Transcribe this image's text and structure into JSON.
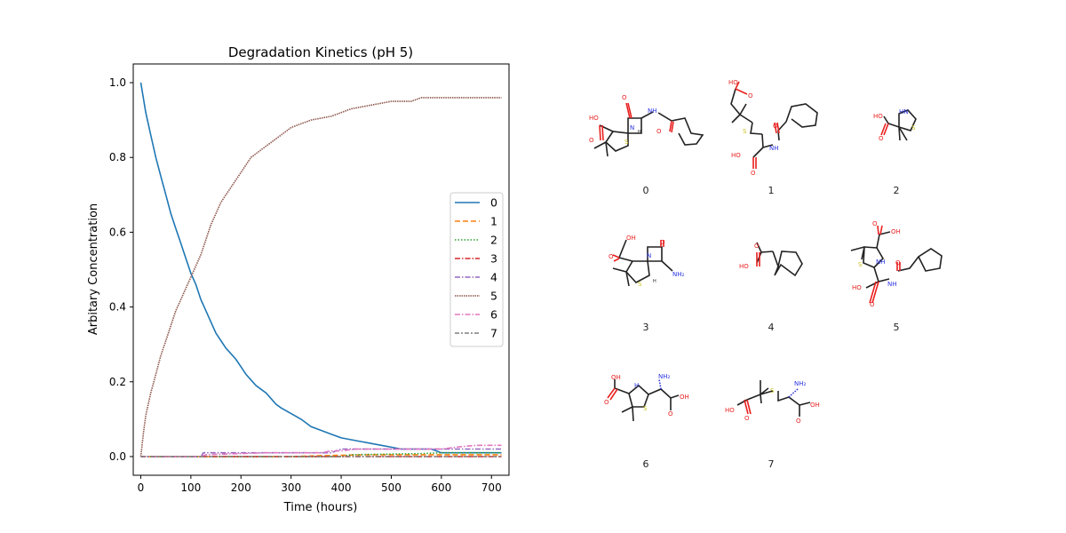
{
  "chart_data": {
    "type": "line",
    "title": "Degradation Kinetics (pH 5)",
    "xlabel": "Time (hours)",
    "ylabel": "Arbitary Concentration",
    "xlim": [
      -15,
      735
    ],
    "ylim": [
      -0.05,
      1.05
    ],
    "xticks": [
      0,
      100,
      200,
      300,
      400,
      500,
      600,
      700
    ],
    "yticks": [
      0.0,
      0.2,
      0.4,
      0.6,
      0.8,
      1.0
    ],
    "xtick_labels": [
      "0",
      "100",
      "200",
      "300",
      "400",
      "500",
      "600",
      "700"
    ],
    "ytick_labels": [
      "0.0",
      "0.2",
      "0.4",
      "0.6",
      "0.8",
      "1.0"
    ],
    "grid": false,
    "legend_position": "right",
    "series": [
      {
        "name": "0",
        "color": "#1f77b4",
        "dash": "solid",
        "x": [
          0,
          5,
          10,
          15,
          20,
          30,
          40,
          50,
          60,
          70,
          80,
          90,
          100,
          110,
          120,
          130,
          140,
          150,
          160,
          170,
          180,
          190,
          200,
          210,
          220,
          230,
          240,
          250,
          260,
          270,
          280,
          300,
          320,
          340,
          360,
          380,
          400,
          420,
          440,
          460,
          480,
          500,
          520,
          540,
          560,
          580,
          600,
          620,
          650,
          680,
          720
        ],
        "y": [
          1.0,
          0.96,
          0.92,
          0.89,
          0.86,
          0.8,
          0.75,
          0.7,
          0.65,
          0.61,
          0.57,
          0.53,
          0.49,
          0.46,
          0.42,
          0.39,
          0.36,
          0.33,
          0.31,
          0.29,
          0.275,
          0.26,
          0.24,
          0.22,
          0.205,
          0.19,
          0.18,
          0.17,
          0.155,
          0.14,
          0.13,
          0.115,
          0.1,
          0.08,
          0.07,
          0.06,
          0.05,
          0.045,
          0.04,
          0.035,
          0.03,
          0.025,
          0.02,
          0.02,
          0.02,
          0.02,
          0.01,
          0.01,
          0.01,
          0.01,
          0.01
        ]
      },
      {
        "name": "1",
        "color": "#ff7f0e",
        "dash": "dashed",
        "x": [
          0,
          300,
          350,
          450,
          720
        ],
        "y": [
          0.0,
          0.0,
          0.002,
          0.005,
          0.005
        ]
      },
      {
        "name": "2",
        "color": "#2ca02c",
        "dash": "dotted",
        "x": [
          0,
          400,
          420,
          560,
          600,
          720
        ],
        "y": [
          0.0,
          0.0,
          0.005,
          0.008,
          0.01,
          0.01
        ]
      },
      {
        "name": "3",
        "color": "#d62728",
        "dash": "dashdot",
        "x": [
          0,
          720
        ],
        "y": [
          0.0,
          0.0
        ]
      },
      {
        "name": "4",
        "color": "#9467bd",
        "dash": "dashdot",
        "x": [
          0,
          120,
          125,
          130,
          380,
          400,
          720
        ],
        "y": [
          0.0,
          0.0,
          0.01,
          0.01,
          0.01,
          0.02,
          0.02
        ]
      },
      {
        "name": "5",
        "color": "#8c564b",
        "dash": "densedot",
        "x": [
          0,
          5,
          10,
          20,
          30,
          40,
          50,
          60,
          70,
          80,
          90,
          100,
          110,
          120,
          130,
          140,
          150,
          160,
          170,
          180,
          190,
          200,
          210,
          220,
          240,
          260,
          280,
          300,
          320,
          340,
          360,
          380,
          400,
          420,
          440,
          460,
          480,
          500,
          520,
          540,
          560,
          580,
          600,
          620,
          650,
          680,
          720
        ],
        "y": [
          0.0,
          0.06,
          0.11,
          0.17,
          0.22,
          0.27,
          0.31,
          0.35,
          0.39,
          0.42,
          0.45,
          0.48,
          0.51,
          0.54,
          0.58,
          0.62,
          0.65,
          0.68,
          0.7,
          0.72,
          0.74,
          0.76,
          0.78,
          0.8,
          0.82,
          0.84,
          0.86,
          0.88,
          0.89,
          0.9,
          0.905,
          0.91,
          0.92,
          0.93,
          0.935,
          0.94,
          0.945,
          0.95,
          0.95,
          0.95,
          0.96,
          0.96,
          0.96,
          0.96,
          0.96,
          0.96,
          0.96
        ]
      },
      {
        "name": "6",
        "color": "#e377c2",
        "dash": "dashdot",
        "x": [
          0,
          120,
          130,
          250,
          360,
          380,
          400,
          430,
          500,
          560,
          600,
          630,
          650,
          670,
          720
        ],
        "y": [
          0.0,
          0.0,
          0.005,
          0.01,
          0.01,
          0.015,
          0.015,
          0.02,
          0.02,
          0.02,
          0.02,
          0.025,
          0.028,
          0.03,
          0.03
        ]
      },
      {
        "name": "7",
        "color": "#7f7f7f",
        "dash": "loosedash",
        "x": [
          0,
          720
        ],
        "y": [
          0.0,
          0.0
        ]
      }
    ]
  },
  "molecules": {
    "labels": [
      "0",
      "1",
      "2",
      "3",
      "4",
      "5",
      "6",
      "7"
    ],
    "atom_text": {
      "oh": "OH",
      "ho": "HO",
      "o": "O",
      "n": "N",
      "s": "S",
      "h": "H",
      "nh": "NH",
      "hn": "HN",
      "nh2": "NH₂"
    },
    "colors": {
      "bond": "#222222",
      "oxygen": "#e8201f",
      "nitrogen": "#2933e0",
      "sulfur": "#c9c21f"
    }
  }
}
